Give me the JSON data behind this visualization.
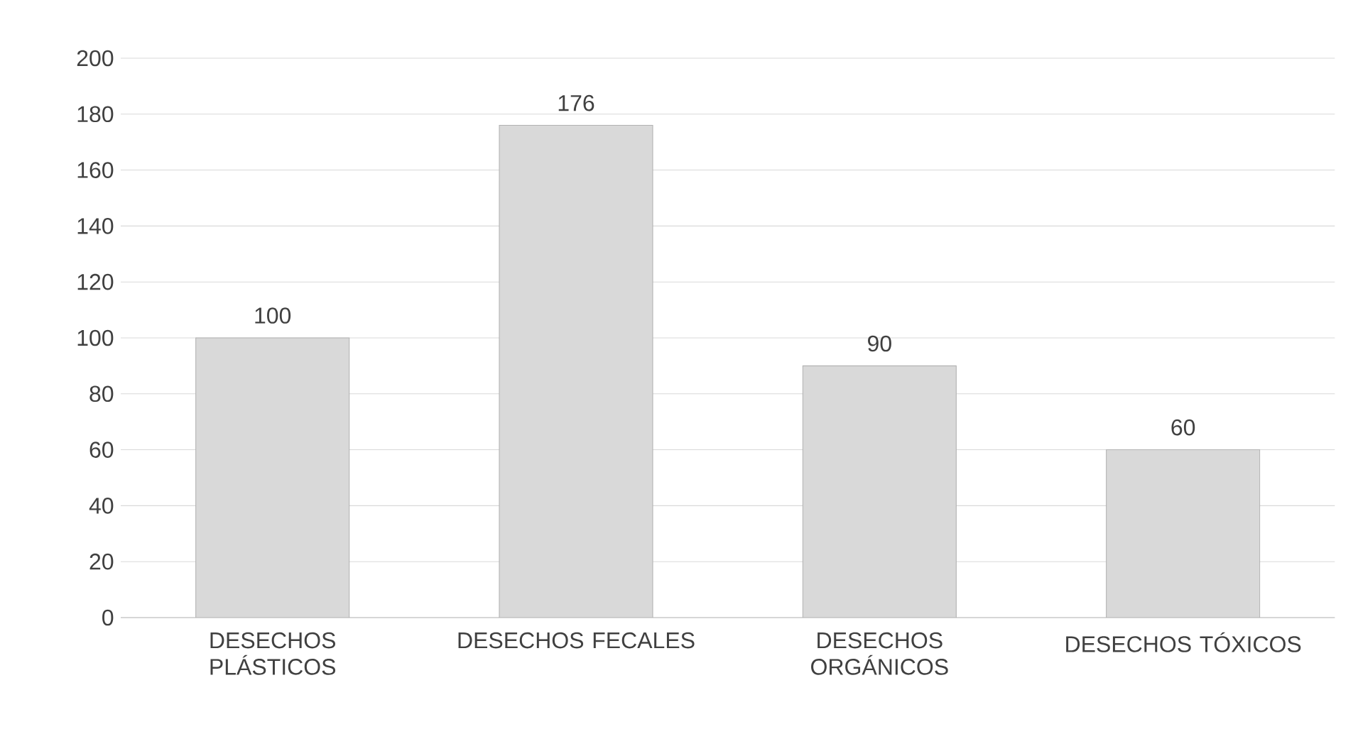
{
  "chart_data": {
    "type": "bar",
    "categories": [
      "DESECHOS PLÁSTICOS",
      "DESECHOS FECALES",
      "DESECHOS ORGÁNICOS",
      "DESECHOS TÓXICOS"
    ],
    "values": [
      100,
      176,
      90,
      60
    ],
    "color": "#d9d9d9",
    "ylim": [
      0,
      200
    ],
    "yticks": [
      0,
      20,
      40,
      60,
      80,
      100,
      120,
      140,
      160,
      180,
      200
    ],
    "grid": "y",
    "data_labels": true
  }
}
